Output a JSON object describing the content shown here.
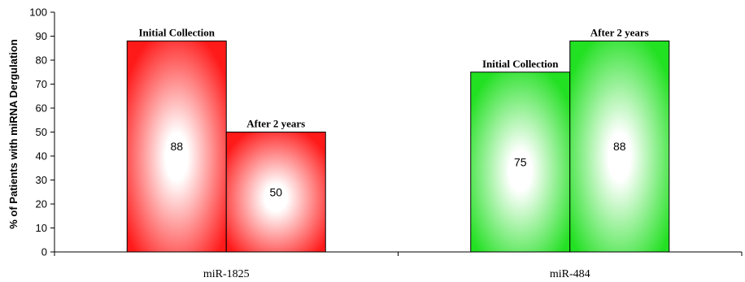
{
  "chart_data": {
    "type": "bar",
    "title": "",
    "xlabel": "",
    "ylabel": "% of Patients with miRNA Dergulation",
    "ylim": [
      0,
      100
    ],
    "yticks": [
      0,
      10,
      20,
      30,
      40,
      50,
      60,
      70,
      80,
      90,
      100
    ],
    "grid": false,
    "legend": "none",
    "categories": [
      "miR-1825",
      "miR-484"
    ],
    "groups": [
      {
        "category": "miR-1825",
        "color": "#ff1a1a",
        "bars": [
          {
            "label": "Initial Collection",
            "value": 88
          },
          {
            "label": "After 2 years",
            "value": 50
          }
        ]
      },
      {
        "category": "miR-484",
        "color": "#22e022",
        "bars": [
          {
            "label": "Initial Collection",
            "value": 75
          },
          {
            "label": "After 2 years",
            "value": 88
          }
        ]
      }
    ]
  }
}
